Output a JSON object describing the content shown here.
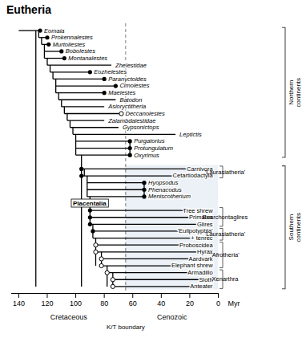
{
  "chart_data": {
    "type": "tree",
    "title": "Eutheria",
    "xlabel": "Myr",
    "xlim": [
      145,
      0
    ],
    "xticks": [
      0,
      20,
      40,
      60,
      80,
      100,
      120,
      140
    ],
    "grid": false,
    "boundary": {
      "x": 65,
      "label": "K/T boundary"
    },
    "periods": [
      "Cretaceous",
      "Cenozoic"
    ],
    "regions": [
      {
        "name": "Northern\ncontinents",
        "rows": [
          {
            "name": "Eomaia",
            "italic": true,
            "from": 140,
            "to": 125,
            "dot": 125,
            "dot_style": "filled"
          },
          {
            "name": "Prokennalestes",
            "italic": true,
            "from": 126,
            "to": 120,
            "dot": 120,
            "dot_style": "filled"
          },
          {
            "name": "Murtoilestes",
            "italic": true,
            "from": 124,
            "to": 119,
            "dot": 119,
            "dot_style": "filled"
          },
          {
            "name": "Bobolestes",
            "italic": true,
            "from": 122,
            "to": 110,
            "dot": 110,
            "dot_style": "filled"
          },
          {
            "name": "Montanalestes",
            "italic": true,
            "from": 122,
            "to": 108,
            "dot": 108,
            "dot_style": "filled"
          },
          {
            "name": "Zhelestidae",
            "italic": true,
            "from": 120,
            "to": 75
          },
          {
            "name": "Eozhelestes",
            "italic": true,
            "from": 118,
            "to": 90,
            "dot": 90,
            "dot_style": "filled"
          },
          {
            "name": "Paranyctoides",
            "italic": true,
            "from": 116,
            "to": 80,
            "dot": 80,
            "dot_style": "filled"
          },
          {
            "name": "Cimolestes",
            "italic": true,
            "from": 114,
            "to": 72,
            "dot": 72,
            "dot_style": "filled"
          },
          {
            "name": "Maelestes",
            "italic": true,
            "from": 114,
            "to": 80,
            "dot": 80,
            "dot_style": "filled"
          },
          {
            "name": "Batodon",
            "italic": true,
            "from": 112,
            "to": 72
          },
          {
            "name": "Asioryctitheria",
            "italic": true,
            "from": 110,
            "to": 80
          },
          {
            "name": "Deccanolestes",
            "italic": true,
            "from": 108,
            "to": 68,
            "dot": 68,
            "dot_style": "open"
          },
          {
            "name": "Zalambdalestidae",
            "italic": true,
            "from": 106,
            "to": 80
          },
          {
            "name": "Gypsonictops",
            "italic": true,
            "from": 104,
            "to": 70
          },
          {
            "name": "Leptictis",
            "italic": true,
            "from": 102,
            "to": 30
          },
          {
            "name": "Purgatorius",
            "italic": true,
            "from": 100,
            "to": 62,
            "dot": 62,
            "dot_style": "filled"
          },
          {
            "name": "Protungulatum",
            "italic": true,
            "from": 100,
            "to": 62,
            "dot": 62,
            "dot_style": "filled"
          },
          {
            "name": "Oxyrimus",
            "italic": true,
            "from": 100,
            "to": 62,
            "dot": 62,
            "dot_style": "filled"
          }
        ]
      },
      {
        "name": "Southern\ncontinents",
        "color": "#dde8f0",
        "rows": [
          {
            "name": "Carnivora",
            "italic": false,
            "from": 96,
            "to": 5,
            "dot": 96,
            "dot_style": "filled"
          },
          {
            "name": "Cetartiodactyla",
            "italic": false,
            "from": 96,
            "to": 5,
            "dot": 96,
            "dot_style": "filled"
          },
          {
            "name": "Hyopsodus",
            "italic": true,
            "from": 92,
            "to": 52,
            "dot": 52,
            "dot_style": "filled"
          },
          {
            "name": "Phenacodus",
            "italic": true,
            "from": 92,
            "to": 52,
            "dot": 52,
            "dot_style": "filled"
          },
          {
            "name": "Meniscotherium",
            "italic": true,
            "from": 92,
            "to": 52,
            "dot": 52,
            "dot_style": "filled"
          },
          {
            "clade": "Placentalia",
            "at": 90
          },
          {
            "name": "Tree shrew",
            "italic": false,
            "from": 90,
            "to": 5,
            "dot": 90,
            "dot_style": "filled"
          },
          {
            "name": "Primates",
            "italic": false,
            "from": 90,
            "to": 5,
            "dot": 90,
            "dot_style": "filled"
          },
          {
            "name": "Glires",
            "italic": false,
            "from": 90,
            "to": 5,
            "dot": 90,
            "dot_style": "filled"
          },
          {
            "name": "'Eulipotyphla'",
            "italic": false,
            "from": 88,
            "to": 5,
            "dot": 88,
            "dot_style": "filled"
          },
          {
            "name": "+ tenrec",
            "italic": false,
            "from": 88,
            "to": 5
          },
          {
            "name": "Proboscidea",
            "italic": false,
            "from": 86,
            "to": 5,
            "dot": 86,
            "dot_style": "open"
          },
          {
            "name": "Hyrax",
            "italic": false,
            "from": 86,
            "to": 5,
            "dot": 86,
            "dot_style": "open"
          },
          {
            "name": "Aardvark",
            "italic": false,
            "from": 82,
            "to": 5,
            "dot": 82,
            "dot_style": "open"
          },
          {
            "name": "Elephant shrew",
            "italic": false,
            "from": 82,
            "to": 5,
            "dot": 82,
            "dot_style": "open"
          },
          {
            "name": "Armadillo",
            "italic": false,
            "from": 78,
            "to": 5,
            "dot": 78,
            "dot_style": "open"
          },
          {
            "name": "Sloth",
            "italic": false,
            "from": 74,
            "to": 5,
            "dot": 74,
            "dot_style": "open"
          },
          {
            "name": "Anteater",
            "italic": false,
            "from": 74,
            "to": 5,
            "dot": 74,
            "dot_style": "open"
          }
        ]
      }
    ],
    "connectors": [
      {
        "x": 128,
        "from": "Anteater",
        "to": "Eomaia"
      },
      {
        "x": 126,
        "from": "Prokennalestes",
        "to": "Eomaia"
      },
      {
        "x": 124,
        "from": "Murtoilestes",
        "to": "Prokennalestes"
      },
      {
        "x": 122,
        "from": "Montanalestes",
        "to": "Murtoilestes"
      },
      {
        "x": 120,
        "from": "Zhelestidae",
        "to": "Montanalestes"
      },
      {
        "x": 118,
        "from": "Eozhelestes",
        "to": "Zhelestidae"
      },
      {
        "x": 116,
        "from": "Paranyctoides",
        "to": "Eozhelestes"
      },
      {
        "x": 114,
        "from": "Maelestes",
        "to": "Paranyctoides"
      },
      {
        "x": 112,
        "from": "Batodon",
        "to": "Maelestes"
      },
      {
        "x": 110,
        "from": "Asioryctitheria",
        "to": "Batodon"
      },
      {
        "x": 108,
        "from": "Deccanolestes",
        "to": "Asioryctitheria"
      },
      {
        "x": 106,
        "from": "Zalambdalestidae",
        "to": "Deccanolestes"
      },
      {
        "x": 104,
        "from": "Gypsonictops",
        "to": "Zalambdalestidae"
      },
      {
        "x": 102,
        "from": "Leptictis",
        "to": "Gypsonictops"
      },
      {
        "x": 100,
        "from": "Oxyrimus",
        "to": "Leptictis"
      },
      {
        "x": 62,
        "from": "Oxyrimus",
        "to": "Purgatorius"
      },
      {
        "x": 96,
        "from": "Anteater",
        "to": "Oxyrimus"
      },
      {
        "x": 94,
        "from": "Cetartiodactyla",
        "to": "Carnivora"
      },
      {
        "x": 92,
        "from": "Meniscotherium",
        "to": "Cetartiodactyla"
      },
      {
        "x": 52,
        "from": "Meniscotherium",
        "to": "Hyopsodus"
      },
      {
        "x": 90,
        "from": "Glires",
        "to": "Meniscotherium"
      },
      {
        "x": 88,
        "from": "+ tenrec",
        "to": "Glires"
      },
      {
        "x": 86,
        "from": "Elephant shrew",
        "to": "+ tenrec"
      },
      {
        "x": 82,
        "from": "Elephant shrew",
        "to": "Hyrax"
      },
      {
        "x": 78,
        "from": "Anteater",
        "to": "Elephant shrew"
      },
      {
        "x": 74,
        "from": "Anteater",
        "to": "Armadillo"
      }
    ],
    "groups": [
      {
        "name": "'Laurasiatheria'",
        "first": "Carnivora",
        "last": "Cetartiodactyla"
      },
      {
        "name": "Euarchontaglires",
        "first": "Tree shrew",
        "last": "Glires"
      },
      {
        "name": "'Laurasiatheria'",
        "first": "'Eulipotyphla'",
        "last": "+ tenrec"
      },
      {
        "name": "'Afrotheria'",
        "first": "Proboscidea",
        "last": "Elephant shrew"
      },
      {
        "name": "Xenarthra",
        "first": "Armadillo",
        "last": "Anteater"
      }
    ]
  }
}
